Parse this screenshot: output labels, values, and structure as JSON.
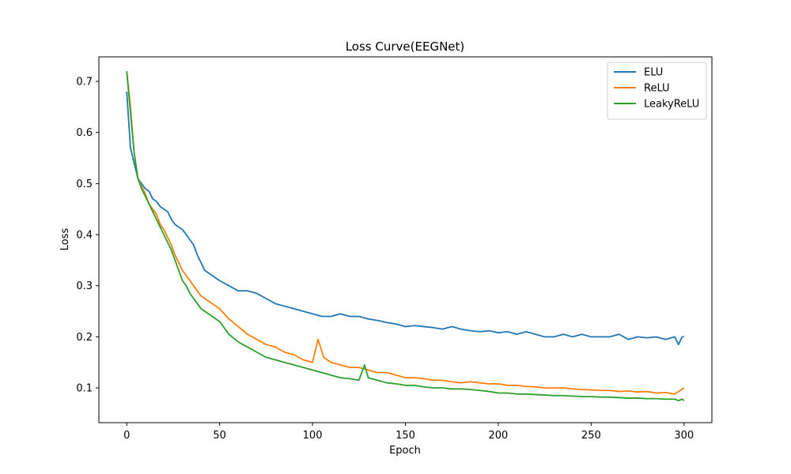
{
  "chart_data": {
    "type": "line",
    "title": "Loss Curve(EEGNet)",
    "xlabel": "Epoch",
    "ylabel": "Loss",
    "xlim": [
      -15,
      315
    ],
    "ylim": [
      0.032,
      0.748
    ],
    "xticks": [
      0,
      50,
      100,
      150,
      200,
      250,
      300
    ],
    "yticks": [
      0.1,
      0.2,
      0.3,
      0.4,
      0.5,
      0.6,
      0.7
    ],
    "grid": false,
    "legend_position": "top-right",
    "series": [
      {
        "name": "ELU",
        "color": "#1f77b4",
        "x": [
          0,
          2,
          4,
          6,
          8,
          10,
          12,
          14,
          16,
          18,
          20,
          22,
          24,
          26,
          28,
          30,
          32,
          34,
          36,
          38,
          40,
          42,
          44,
          46,
          48,
          50,
          55,
          60,
          65,
          70,
          75,
          80,
          85,
          90,
          95,
          100,
          105,
          110,
          115,
          120,
          125,
          130,
          135,
          140,
          145,
          150,
          155,
          160,
          165,
          170,
          175,
          180,
          185,
          190,
          195,
          200,
          205,
          210,
          215,
          220,
          225,
          230,
          235,
          240,
          245,
          250,
          255,
          260,
          265,
          270,
          275,
          280,
          285,
          290,
          295,
          297,
          299,
          300
        ],
        "y": [
          0.68,
          0.57,
          0.54,
          0.51,
          0.5,
          0.49,
          0.485,
          0.47,
          0.465,
          0.455,
          0.45,
          0.445,
          0.43,
          0.42,
          0.415,
          0.41,
          0.4,
          0.39,
          0.38,
          0.36,
          0.345,
          0.33,
          0.325,
          0.32,
          0.315,
          0.31,
          0.3,
          0.29,
          0.29,
          0.285,
          0.275,
          0.265,
          0.26,
          0.255,
          0.25,
          0.245,
          0.24,
          0.24,
          0.245,
          0.24,
          0.24,
          0.235,
          0.232,
          0.228,
          0.225,
          0.22,
          0.222,
          0.22,
          0.218,
          0.215,
          0.22,
          0.215,
          0.212,
          0.21,
          0.212,
          0.208,
          0.21,
          0.205,
          0.21,
          0.205,
          0.2,
          0.2,
          0.205,
          0.2,
          0.205,
          0.2,
          0.2,
          0.2,
          0.205,
          0.195,
          0.2,
          0.198,
          0.2,
          0.195,
          0.2,
          0.185,
          0.2,
          0.2
        ]
      },
      {
        "name": "ReLU",
        "color": "#ff7f0e",
        "x": [
          0,
          2,
          4,
          6,
          8,
          10,
          12,
          14,
          16,
          18,
          20,
          22,
          24,
          26,
          28,
          30,
          32,
          34,
          36,
          38,
          40,
          42,
          44,
          46,
          48,
          50,
          55,
          60,
          65,
          70,
          75,
          80,
          85,
          90,
          95,
          100,
          103,
          106,
          110,
          115,
          120,
          125,
          130,
          135,
          140,
          145,
          150,
          155,
          160,
          165,
          170,
          175,
          180,
          185,
          190,
          195,
          200,
          205,
          210,
          215,
          220,
          225,
          230,
          235,
          240,
          245,
          250,
          255,
          260,
          265,
          270,
          275,
          280,
          285,
          290,
          295,
          300
        ],
        "y": [
          0.72,
          0.65,
          0.56,
          0.51,
          0.495,
          0.48,
          0.46,
          0.45,
          0.44,
          0.42,
          0.41,
          0.395,
          0.38,
          0.36,
          0.345,
          0.33,
          0.32,
          0.31,
          0.3,
          0.29,
          0.28,
          0.275,
          0.27,
          0.265,
          0.26,
          0.255,
          0.235,
          0.22,
          0.205,
          0.195,
          0.185,
          0.18,
          0.17,
          0.165,
          0.155,
          0.15,
          0.195,
          0.16,
          0.15,
          0.145,
          0.14,
          0.14,
          0.135,
          0.13,
          0.13,
          0.125,
          0.12,
          0.12,
          0.118,
          0.115,
          0.115,
          0.112,
          0.11,
          0.112,
          0.11,
          0.108,
          0.108,
          0.105,
          0.105,
          0.103,
          0.102,
          0.1,
          0.1,
          0.1,
          0.098,
          0.097,
          0.096,
          0.095,
          0.095,
          0.093,
          0.094,
          0.092,
          0.093,
          0.09,
          0.091,
          0.088,
          0.1
        ]
      },
      {
        "name": "LeakyReLU",
        "color": "#2ca02c",
        "x": [
          0,
          2,
          4,
          6,
          8,
          10,
          12,
          14,
          16,
          18,
          20,
          22,
          24,
          26,
          28,
          30,
          32,
          34,
          36,
          38,
          40,
          42,
          44,
          46,
          48,
          50,
          55,
          60,
          65,
          70,
          75,
          80,
          85,
          90,
          95,
          100,
          105,
          110,
          115,
          120,
          125,
          128,
          130,
          135,
          140,
          145,
          150,
          155,
          160,
          165,
          170,
          175,
          180,
          185,
          190,
          195,
          200,
          205,
          210,
          215,
          220,
          225,
          230,
          235,
          240,
          245,
          250,
          255,
          260,
          265,
          270,
          275,
          280,
          285,
          290,
          295,
          297,
          299,
          300
        ],
        "y": [
          0.72,
          0.64,
          0.56,
          0.51,
          0.49,
          0.475,
          0.46,
          0.445,
          0.43,
          0.415,
          0.4,
          0.385,
          0.37,
          0.35,
          0.33,
          0.31,
          0.3,
          0.285,
          0.275,
          0.265,
          0.255,
          0.25,
          0.245,
          0.24,
          0.235,
          0.23,
          0.205,
          0.19,
          0.18,
          0.17,
          0.16,
          0.155,
          0.15,
          0.145,
          0.14,
          0.135,
          0.13,
          0.125,
          0.12,
          0.118,
          0.115,
          0.145,
          0.12,
          0.115,
          0.11,
          0.108,
          0.105,
          0.105,
          0.102,
          0.1,
          0.1,
          0.098,
          0.098,
          0.097,
          0.095,
          0.093,
          0.09,
          0.09,
          0.088,
          0.088,
          0.087,
          0.086,
          0.085,
          0.085,
          0.084,
          0.083,
          0.083,
          0.082,
          0.082,
          0.081,
          0.08,
          0.08,
          0.079,
          0.079,
          0.078,
          0.078,
          0.075,
          0.078,
          0.075
        ]
      }
    ]
  }
}
